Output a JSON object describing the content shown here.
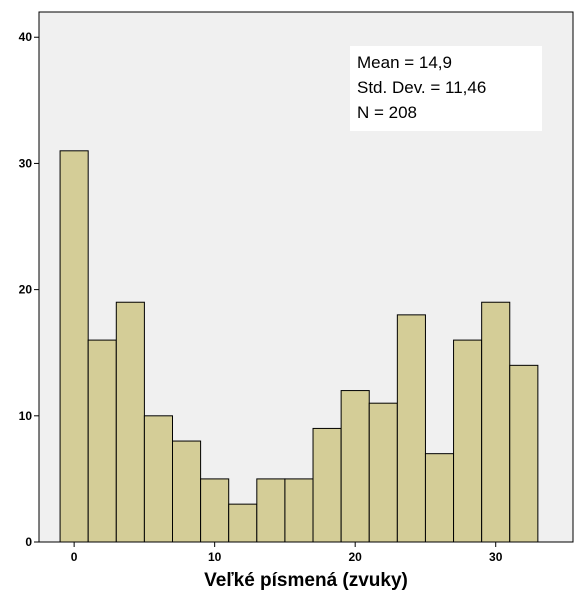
{
  "chart_data": {
    "type": "bar",
    "subtype": "histogram",
    "xlabel": "Veľké písmená (zvuky)",
    "ylabel": "",
    "xlim": [
      -2.5,
      35.5
    ],
    "ylim": [
      0,
      42
    ],
    "x_ticks": [
      0,
      10,
      20,
      30
    ],
    "y_ticks": [
      0,
      10,
      20,
      30,
      40
    ],
    "bin_width": 2,
    "bins": [
      {
        "start": -1,
        "end": 1,
        "value": 31
      },
      {
        "start": 1,
        "end": 3,
        "value": 16
      },
      {
        "start": 3,
        "end": 5,
        "value": 19
      },
      {
        "start": 5,
        "end": 7,
        "value": 10
      },
      {
        "start": 7,
        "end": 9,
        "value": 8
      },
      {
        "start": 9,
        "end": 11,
        "value": 5
      },
      {
        "start": 11,
        "end": 13,
        "value": 3
      },
      {
        "start": 13,
        "end": 15,
        "value": 5
      },
      {
        "start": 15,
        "end": 17,
        "value": 5
      },
      {
        "start": 17,
        "end": 19,
        "value": 9
      },
      {
        "start": 19,
        "end": 21,
        "value": 12
      },
      {
        "start": 21,
        "end": 23,
        "value": 11
      },
      {
        "start": 23,
        "end": 25,
        "value": 18
      },
      {
        "start": 25,
        "end": 27,
        "value": 7
      },
      {
        "start": 27,
        "end": 29,
        "value": 16
      },
      {
        "start": 29,
        "end": 31,
        "value": 19
      },
      {
        "start": 31,
        "end": 33,
        "value": 14
      }
    ],
    "stats": {
      "mean": "Mean = 14,9",
      "std_dev": "Std. Dev. = 11,46",
      "n": "N = 208"
    },
    "grid": false,
    "colors": {
      "bar_fill": "#d4cd97",
      "bar_stroke": "#000000",
      "plot_bg": "#f0f0f0"
    }
  }
}
